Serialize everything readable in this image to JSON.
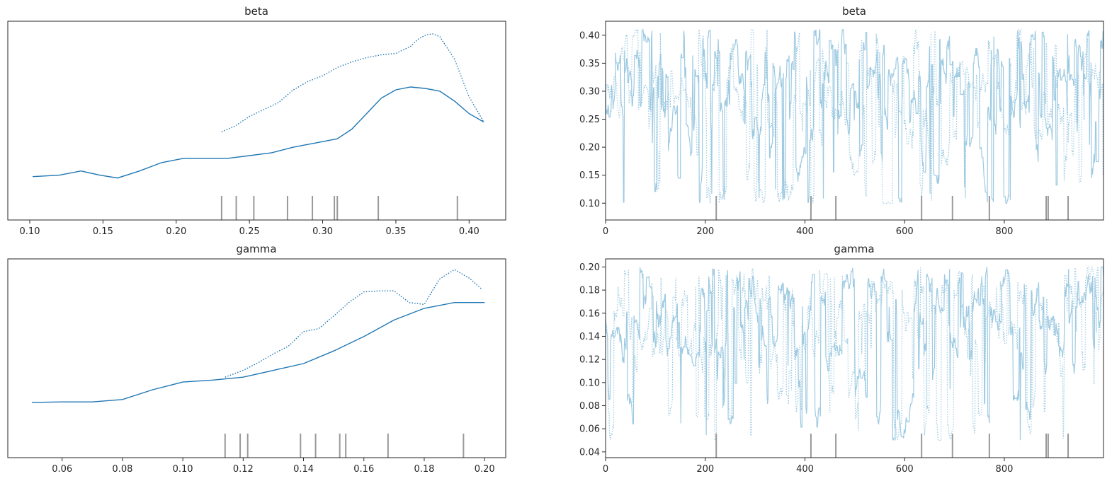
{
  "figure": {
    "type": "trace plot"
  },
  "colors": {
    "line": "#1f77b4",
    "trace": "#9ecae1",
    "rug": "#999999",
    "axis": "#262626",
    "background": "#ffffff"
  },
  "chart_data": [
    {
      "type": "line",
      "title": "beta",
      "xlabel": "",
      "ylabel": "",
      "xlim": [
        0.085,
        0.425
      ],
      "xticks": [
        "0.10",
        "0.15",
        "0.20",
        "0.25",
        "0.30",
        "0.35",
        "0.40"
      ],
      "yticks": [],
      "grid": false,
      "series": [
        {
          "style": "solid",
          "x": [
            0.102,
            0.12,
            0.135,
            0.148,
            0.16,
            0.175,
            0.19,
            0.205,
            0.22,
            0.235,
            0.25,
            0.265,
            0.28,
            0.295,
            0.31,
            0.32,
            0.33,
            0.34,
            0.35,
            0.36,
            0.37,
            0.38,
            0.39,
            0.4,
            0.41
          ],
          "y": [
            0.31,
            0.32,
            0.35,
            0.32,
            0.3,
            0.35,
            0.41,
            0.44,
            0.44,
            0.44,
            0.46,
            0.48,
            0.52,
            0.55,
            0.58,
            0.65,
            0.76,
            0.87,
            0.93,
            0.95,
            0.94,
            0.92,
            0.85,
            0.76,
            0.7
          ]
        },
        {
          "style": "dotted",
          "x": [
            0.231,
            0.24,
            0.25,
            0.26,
            0.27,
            0.28,
            0.29,
            0.3,
            0.31,
            0.32,
            0.33,
            0.34,
            0.35,
            0.36,
            0.365,
            0.37,
            0.375,
            0.38,
            0.39,
            0.4,
            0.41
          ],
          "y": [
            0.63,
            0.67,
            0.74,
            0.79,
            0.84,
            0.93,
            0.99,
            1.03,
            1.09,
            1.13,
            1.16,
            1.18,
            1.19,
            1.24,
            1.29,
            1.32,
            1.33,
            1.31,
            1.15,
            0.88,
            0.7
          ]
        }
      ],
      "rug": [
        0.231,
        0.241,
        0.253,
        0.276,
        0.293,
        0.308,
        0.31,
        0.338,
        0.392
      ]
    },
    {
      "type": "line",
      "title": "beta",
      "xlabel": "",
      "ylabel": "",
      "xlim": [
        0,
        999
      ],
      "ylim": [
        0.07,
        0.425
      ],
      "xticks": [
        "0",
        "200",
        "400",
        "600",
        "800"
      ],
      "yticks": [
        "0.10",
        "0.15",
        "0.20",
        "0.25",
        "0.30",
        "0.35",
        "0.40"
      ],
      "grid": false,
      "trace": {
        "min": 0.1,
        "max": 0.41,
        "n": 1000
      },
      "rug": [
        222,
        412,
        462,
        634,
        696,
        770,
        884,
        888,
        928
      ]
    },
    {
      "type": "line",
      "title": "gamma",
      "xlabel": "",
      "ylabel": "",
      "xlim": [
        0.042,
        0.207
      ],
      "xticks": [
        "0.06",
        "0.08",
        "0.10",
        "0.12",
        "0.14",
        "0.16",
        "0.18",
        "0.20"
      ],
      "yticks": [],
      "grid": false,
      "series": [
        {
          "style": "solid",
          "x": [
            0.05,
            0.06,
            0.07,
            0.08,
            0.09,
            0.1,
            0.11,
            0.12,
            0.13,
            0.14,
            0.15,
            0.16,
            0.17,
            0.18,
            0.19,
            0.2
          ],
          "y": [
            0.57,
            0.575,
            0.575,
            0.6,
            0.7,
            0.78,
            0.8,
            0.83,
            0.9,
            0.97,
            1.1,
            1.25,
            1.42,
            1.54,
            1.6,
            1.6
          ]
        },
        {
          "style": "dotted",
          "x": [
            0.114,
            0.12,
            0.125,
            0.13,
            0.135,
            0.14,
            0.145,
            0.15,
            0.155,
            0.16,
            0.165,
            0.17,
            0.175,
            0.18,
            0.185,
            0.19,
            0.195,
            0.199
          ],
          "y": [
            0.83,
            0.9,
            0.98,
            1.07,
            1.15,
            1.3,
            1.33,
            1.46,
            1.6,
            1.71,
            1.72,
            1.72,
            1.6,
            1.58,
            1.84,
            1.94,
            1.85,
            1.74
          ]
        }
      ],
      "rug": [
        0.114,
        0.119,
        0.1215,
        0.139,
        0.144,
        0.152,
        0.154,
        0.168,
        0.193
      ]
    },
    {
      "type": "line",
      "title": "gamma",
      "xlabel": "",
      "ylabel": "",
      "xlim": [
        0,
        999
      ],
      "ylim": [
        0.035,
        0.207
      ],
      "xticks": [
        "0",
        "200",
        "400",
        "600",
        "800"
      ],
      "yticks": [
        "0.04",
        "0.06",
        "0.08",
        "0.10",
        "0.12",
        "0.14",
        "0.16",
        "0.18",
        "0.20"
      ],
      "grid": false,
      "trace": {
        "min": 0.05,
        "max": 0.2,
        "n": 1000
      },
      "rug": [
        222,
        412,
        462,
        634,
        696,
        770,
        884,
        888,
        928
      ]
    }
  ]
}
